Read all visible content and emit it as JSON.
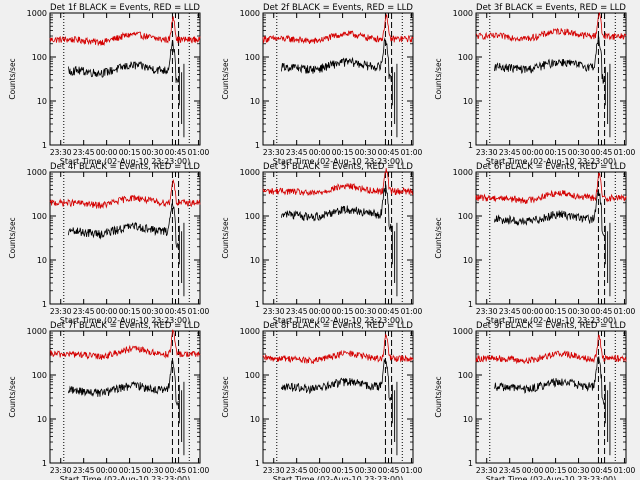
{
  "window": {
    "background": "#f0f0f0"
  },
  "shared": {
    "ylabel": "Counts/sec",
    "xlabel": "Start Time (02-Aug-10 23:23:00)",
    "x_tick_labels": [
      "23:30",
      "23:45",
      "00:00",
      "00:15",
      "00:30",
      "00:45",
      "01:00"
    ],
    "y_tick_labels": [
      "1",
      "10",
      "100",
      "1000"
    ],
    "y_scale": "log",
    "ylim": [
      1,
      1000
    ],
    "xlim_minutes_since_23_23": [
      0,
      98
    ],
    "events_color": "#000000",
    "lld_color": "#d40000",
    "axis_color": "#000000"
  },
  "chart_data": [
    {
      "type": "line",
      "title": "Det 1f BLACK = Events, RED = LLD",
      "lld_base": 250,
      "event_base": 50,
      "vlines_minutes_since_23_23": [
        9,
        80,
        84
      ],
      "series": [
        {
          "name": "Events",
          "color": "#000000",
          "level": 50
        },
        {
          "name": "LLD",
          "color": "#d40000",
          "level": 250
        }
      ]
    },
    {
      "type": "line",
      "title": "Det 2f BLACK = Events, RED = LLD",
      "lld_base": 260,
      "event_base": 60,
      "vlines_minutes_since_23_23": [
        9,
        80,
        84
      ],
      "series": [
        {
          "name": "Events",
          "color": "#000000",
          "level": 60
        },
        {
          "name": "LLD",
          "color": "#d40000",
          "level": 260
        }
      ]
    },
    {
      "type": "line",
      "title": "Det 3f BLACK = Events, RED = LLD",
      "lld_base": 300,
      "event_base": 60,
      "vlines_minutes_since_23_23": [
        9,
        80,
        84
      ],
      "series": [
        {
          "name": "Events",
          "color": "#000000",
          "level": 60
        },
        {
          "name": "LLD",
          "color": "#d40000",
          "level": 300
        }
      ]
    },
    {
      "type": "line",
      "title": "Det 4f BLACK = Events, RED = LLD",
      "lld_base": 200,
      "event_base": 45,
      "vlines_minutes_since_23_23": [
        9,
        80,
        84
      ],
      "series": [
        {
          "name": "Events",
          "color": "#000000",
          "level": 45
        },
        {
          "name": "LLD",
          "color": "#d40000",
          "level": 200
        }
      ]
    },
    {
      "type": "line",
      "title": "Det 5f BLACK = Events, RED = LLD",
      "lld_base": 370,
      "event_base": 110,
      "vlines_minutes_since_23_23": [
        9,
        80,
        84
      ],
      "series": [
        {
          "name": "Events",
          "color": "#000000",
          "level": 110
        },
        {
          "name": "LLD",
          "color": "#d40000",
          "level": 370
        }
      ]
    },
    {
      "type": "line",
      "title": "Det 6f BLACK = Events, RED = LLD",
      "lld_base": 260,
      "event_base": 85,
      "vlines_minutes_since_23_23": [
        9,
        80,
        84
      ],
      "series": [
        {
          "name": "Events",
          "color": "#000000",
          "level": 85
        },
        {
          "name": "LLD",
          "color": "#d40000",
          "level": 260
        }
      ]
    },
    {
      "type": "line",
      "title": "Det 7f BLACK = Events, RED = LLD",
      "lld_base": 300,
      "event_base": 45,
      "vlines_minutes_since_23_23": [
        9,
        80,
        84
      ],
      "series": [
        {
          "name": "Events",
          "color": "#000000",
          "level": 45
        },
        {
          "name": "LLD",
          "color": "#d40000",
          "level": 300
        }
      ]
    },
    {
      "type": "line",
      "title": "Det 8f BLACK = Events, RED = LLD",
      "lld_base": 240,
      "event_base": 55,
      "vlines_minutes_since_23_23": [
        9,
        80,
        84
      ],
      "series": [
        {
          "name": "Events",
          "color": "#000000",
          "level": 55
        },
        {
          "name": "LLD",
          "color": "#d40000",
          "level": 240
        }
      ]
    },
    {
      "type": "line",
      "title": "Det 9f BLACK = Events, RED = LLD",
      "lld_base": 240,
      "event_base": 55,
      "vlines_minutes_since_23_23": [
        9,
        80,
        84
      ],
      "series": [
        {
          "name": "Events",
          "color": "#000000",
          "level": 55
        },
        {
          "name": "LLD",
          "color": "#d40000",
          "level": 240
        }
      ]
    }
  ]
}
